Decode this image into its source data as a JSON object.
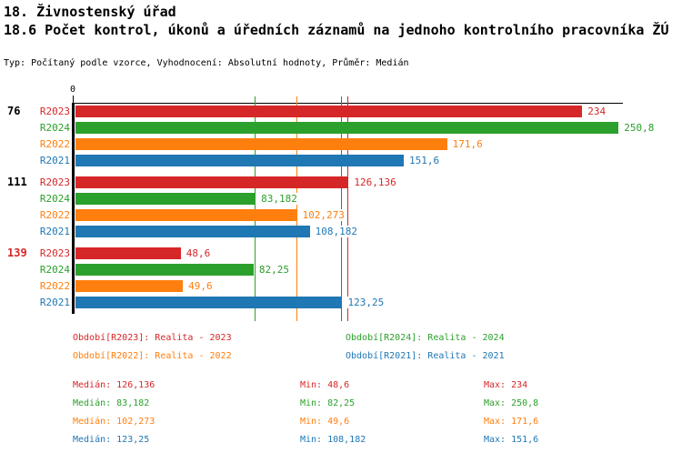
{
  "header": {
    "title": "18. Živnostenský úřad",
    "subtitle": "18.6 Počet kontrol, úkonů a úředních záznamů na jednoho kontrolního pracovníka ŽÚ",
    "meta": "Typ: Počítaný podle vzorce, Vyhodnocení: Absolutní hodnoty, Průměr: Medián"
  },
  "colors": {
    "R2023": "#d62728",
    "R2024": "#2ca02c",
    "R2022": "#ff7f0e",
    "R2021": "#1f77b4",
    "group_label_default": "#000000",
    "group_label_highlight": "#d62728",
    "axis": "#000000"
  },
  "chart_data": {
    "type": "bar",
    "orientation": "horizontal",
    "title": "18.6 Počet kontrol, úkonů a úředních záznamů na jednoho kontrolního pracovníka ŽÚ",
    "xlim": [
      0,
      252.8
    ],
    "x_axis": {
      "origin_label": "0"
    },
    "series_order": [
      "R2023",
      "R2024",
      "R2022",
      "R2021"
    ],
    "groups": [
      {
        "label": "76",
        "highlight": false,
        "bars": [
          {
            "series": "R2023",
            "value": 234,
            "display": "234"
          },
          {
            "series": "R2024",
            "value": 250.8,
            "display": "250,8"
          },
          {
            "series": "R2022",
            "value": 171.6,
            "display": "171,6"
          },
          {
            "series": "R2021",
            "value": 151.6,
            "display": "151,6"
          }
        ]
      },
      {
        "label": "111",
        "highlight": false,
        "bars": [
          {
            "series": "R2023",
            "value": 126.136,
            "display": "126,136"
          },
          {
            "series": "R2024",
            "value": 83.182,
            "display": "83,182"
          },
          {
            "series": "R2022",
            "value": 102.273,
            "display": "102,273"
          },
          {
            "series": "R2021",
            "value": 108.182,
            "display": "108,182"
          }
        ]
      },
      {
        "label": "139",
        "highlight": true,
        "bars": [
          {
            "series": "R2023",
            "value": 48.6,
            "display": "48,6"
          },
          {
            "series": "R2024",
            "value": 82.25,
            "display": "82,25"
          },
          {
            "series": "R2022",
            "value": 49.6,
            "display": "49,6"
          },
          {
            "series": "R2021",
            "value": 123.25,
            "display": "123,25"
          }
        ]
      }
    ],
    "median_lines": [
      {
        "series": "R2024",
        "value": 83.182
      },
      {
        "series": "R2022",
        "value": 102.273
      },
      {
        "series": "R2021",
        "value": 123.25
      },
      {
        "series": "R2023",
        "value": 126.136
      }
    ]
  },
  "legend": {
    "items": [
      {
        "series": "R2023",
        "text": "Období[R2023]: Realita - 2023"
      },
      {
        "series": "R2024",
        "text": "Období[R2024]: Realita - 2024"
      },
      {
        "series": "R2022",
        "text": "Období[R2022]: Realita - 2022"
      },
      {
        "series": "R2021",
        "text": "Období[R2021]: Realita - 2021"
      }
    ]
  },
  "stats": {
    "labels": {
      "median": "Medián",
      "min": "Min",
      "max": "Max"
    },
    "rows": [
      {
        "series": "R2023",
        "median": "126,136",
        "min": "48,6",
        "max": "234"
      },
      {
        "series": "R2024",
        "median": "83,182",
        "min": "82,25",
        "max": "250,8"
      },
      {
        "series": "R2022",
        "median": "102,273",
        "min": "49,6",
        "max": "171,6"
      },
      {
        "series": "R2021",
        "median": "123,25",
        "min": "108,182",
        "max": "151,6"
      }
    ]
  }
}
